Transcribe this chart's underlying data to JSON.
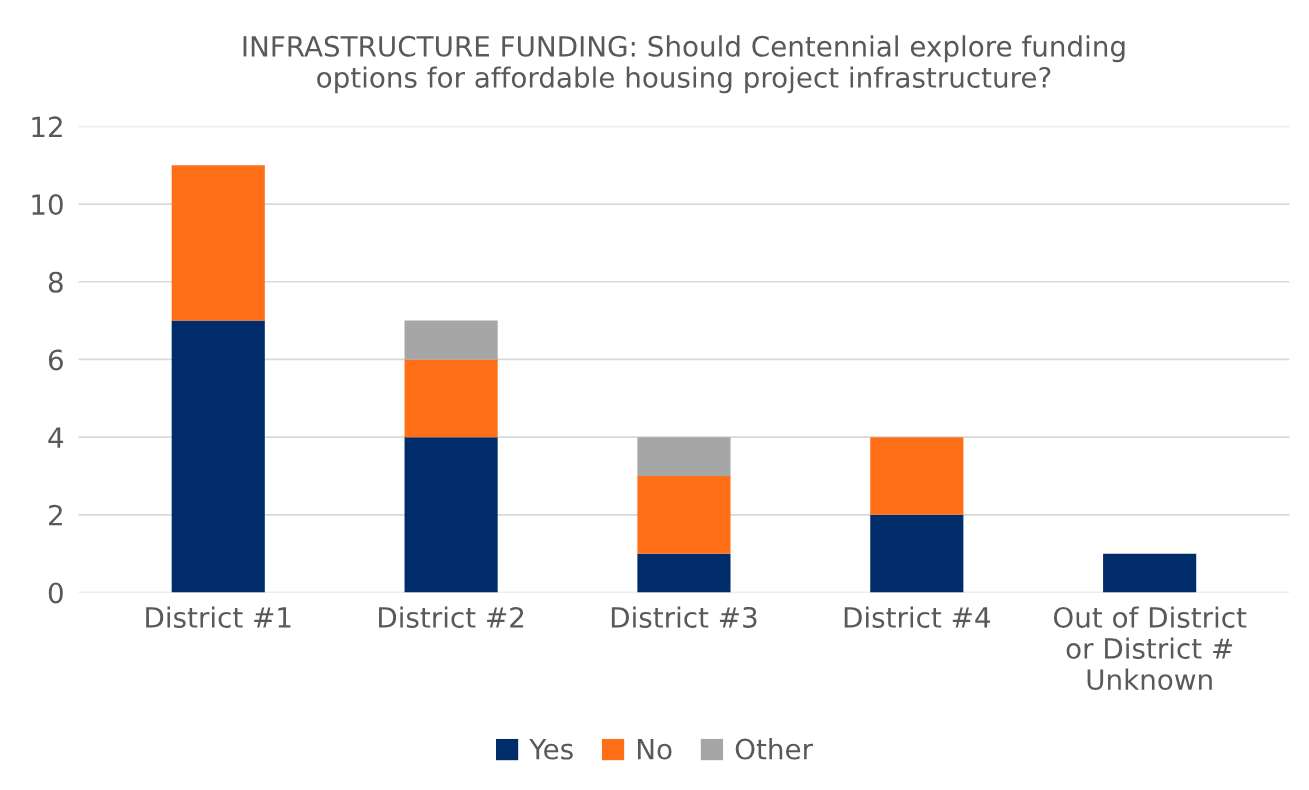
{
  "chart_data": {
    "type": "bar",
    "title": "INFRASTRUCTURE FUNDING: Should Centennial explore funding\noptions for affordable housing project infrastructure?",
    "categories": [
      "District #1",
      "District #2",
      "District #3",
      "District #4",
      "Out of District\nor District #\nUnknown"
    ],
    "stacked": true,
    "series": [
      {
        "name": "Yes",
        "color": "#002d6a",
        "values": [
          7,
          4,
          1,
          2,
          1
        ]
      },
      {
        "name": "No",
        "color": "#ff6f17",
        "values": [
          4,
          2,
          2,
          2,
          null
        ]
      },
      {
        "name": "Other",
        "color": "#a6a6a6",
        "values": [
          null,
          1,
          1,
          null,
          null
        ]
      }
    ],
    "ylim": [
      0,
      12
    ],
    "yticks": [
      0,
      2,
      4,
      6,
      8,
      10,
      12
    ],
    "grid": "y",
    "legend": "bottom"
  }
}
